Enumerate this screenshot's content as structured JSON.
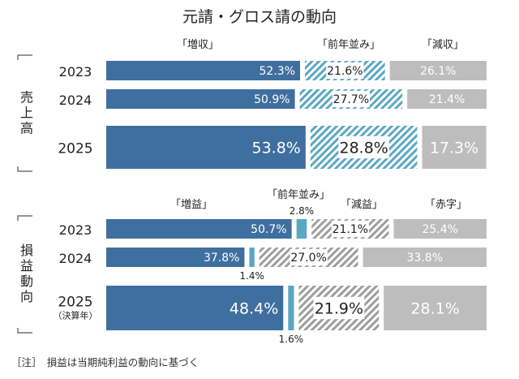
{
  "chart_data": [
    {
      "type": "bar",
      "title": "元請・グロス請の動向",
      "group_label": "売上高",
      "categories": [
        "2023",
        "2024",
        "2025"
      ],
      "series": [
        {
          "name": "「増収」",
          "values": [
            52.3,
            50.9,
            53.8
          ]
        },
        {
          "name": "「前年並み」",
          "values": [
            21.6,
            27.7,
            28.8
          ]
        },
        {
          "name": "「減収」",
          "values": [
            26.1,
            21.4,
            17.3
          ]
        }
      ],
      "colors": [
        "#3f6f9e",
        "#5aa7c4",
        "#bdbdbd"
      ]
    },
    {
      "type": "bar",
      "group_label": "損益動向",
      "categories": [
        "2023",
        "2024",
        "2025"
      ],
      "category_sub": [
        "",
        "",
        "（決算年）"
      ],
      "series": [
        {
          "name": "「増益」",
          "values": [
            50.7,
            37.8,
            48.4
          ]
        },
        {
          "name": "「前年並み」",
          "values": [
            2.8,
            1.4,
            1.6
          ]
        },
        {
          "name": "「減益」",
          "values": [
            21.1,
            27.0,
            21.9
          ]
        },
        {
          "name": "「赤字」",
          "values": [
            25.4,
            33.8,
            28.1
          ]
        }
      ],
      "colors": [
        "#3f6f9e",
        "#5aa7c4",
        "#9e9e9e",
        "#bdbdbd"
      ]
    }
  ],
  "note": "［注］　損益は当期純利益の動向に基づく"
}
